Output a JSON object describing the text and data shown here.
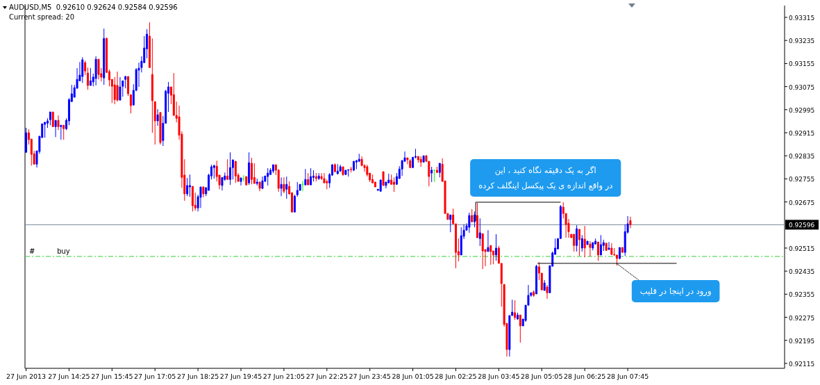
{
  "chart_data": {
    "type": "candlestick",
    "title": "AUDUSD,M5  0.92610 0.92624 0.92584 0.92596",
    "subtitle": "Current spread: 20",
    "colors": [
      "#0000ff",
      "#ff0000",
      "#ff0000",
      "#ff0000",
      "#0000ff",
      "#0000ff",
      "#0000ff",
      "#0000ff",
      "#0000ff",
      "#0000ff",
      "#ff0000",
      "#0000ff",
      "#ff0000",
      "#0000ff",
      "#ff0000",
      "#0000ff",
      "#0000ff",
      "#0000ff",
      "#0000ff",
      "#0000ff",
      "#0000ff",
      "#0000ff",
      "#ff0000",
      "#ff0000",
      "#0000ff",
      "#0000ff",
      "#0000ff",
      "#ff0000",
      "#ff0000",
      "#0000ff",
      "#ff0000",
      "#ff0000",
      "#ff0000",
      "#ff0000",
      "#ff0000",
      "#0000ff",
      "#0000ff",
      "#0000ff",
      "#ff0000",
      "#ff0000",
      "#0000ff",
      "#0000ff",
      "#0000ff",
      "#0000ff",
      "#0000ff",
      "#0000ff",
      "#ff0000",
      "#ff0000",
      "#ff0000",
      "#0000ff",
      "#ff0000",
      "#0000ff",
      "#0000ff",
      "#0000ff",
      "#ff0000",
      "#ff0000",
      "#ff0000",
      "#ff0000",
      "#ff0000",
      "#ff0000",
      "#0000ff",
      "#0000ff",
      "#ff0000",
      "#ff0000",
      "#0000ff",
      "#0000ff",
      "#ff0000",
      "#0000ff",
      "#0000ff",
      "#0000ff",
      "#0000ff",
      "#ff0000",
      "#ff0000",
      "#0000ff",
      "#0000ff",
      "#ff0000",
      "#0000ff",
      "#0000ff",
      "#ff0000",
      "#ff0000",
      "#0000ff",
      "#00ff00",
      "#ff0000",
      "#0000ff",
      "#ff0000",
      "#ff0000",
      "#0000ff",
      "#ff0000",
      "#0000ff",
      "#0000ff",
      "#0000ff",
      "#0000ff",
      "#0000ff",
      "#ff0000",
      "#ff0000",
      "#0000ff",
      "#ff0000",
      "#0000ff",
      "#ff0000",
      "#ff0000",
      "#0000ff",
      "#0000ff",
      "#0000ff",
      "#00ff00",
      "#0000ff",
      "#ff0000",
      "#0000ff",
      "#0000ff",
      "#ff0000",
      "#0000ff",
      "#ff0000",
      "#ff0000",
      "#ff0000",
      "#0000ff",
      "#0000ff",
      "#ff0000",
      "#0000ff",
      "#0000ff",
      "#ff0000",
      "#0000ff",
      "#0000ff",
      "#ff0000",
      "#0000ff",
      "#0000ff",
      "#0000ff",
      "#ff0000",
      "#ff0000",
      "#ff0000",
      "#ff0000",
      "#ff0000",
      "#ff0000",
      "#0000ff",
      "#0000ff",
      "#ff0000",
      "#0000ff",
      "#0000ff",
      "#ff0000",
      "#ff0000",
      "#0000ff",
      "#0000ff",
      "#0000ff",
      "#0000ff",
      "#ff0000",
      "#ff0000",
      "#0000ff",
      "#0000ff",
      "#ff0000",
      "#ff0000",
      "#0000ff",
      "#ff0000",
      "#ff0000",
      "#0000ff",
      "#00ff00",
      "#ff0000",
      "#0000ff",
      "#ff0000",
      "#ff0000",
      "#ff0000",
      "#0000ff",
      "#ff0000",
      "#ff0000",
      "#ff0000",
      "#0000ff",
      "#0000ff",
      "#0000ff",
      "#0000ff",
      "#ff0000",
      "#0000ff",
      "#ff0000",
      "#0000ff",
      "#ff0000",
      "#ff0000",
      "#0000ff",
      "#ff0000",
      "#ff0000",
      "#0000ff",
      "#ff0000",
      "#ff0000",
      "#ff0000",
      "#ff0000",
      "#0000ff",
      "#0000ff",
      "#ff0000",
      "#0000ff",
      "#ff0000",
      "#0000ff",
      "#0000ff",
      "#0000ff",
      "#0000ff",
      "#ff0000",
      "#0000ff",
      "#ff0000",
      "#ff0000",
      "#0000ff",
      "#ff0000",
      "#0000ff",
      "#0000ff",
      "#0000ff",
      "#0000ff",
      "#0000ff",
      "#ff0000",
      "#ff0000",
      "#ff0000",
      "#ff0000",
      "#ff0000",
      "#0000ff",
      "#ff0000",
      "#0000ff",
      "#ff0000",
      "#0000ff",
      "#ff0000",
      "#0000ff",
      "#0000ff",
      "#ff0000",
      "#0000ff",
      "#0000ff",
      "#ff0000",
      "#0000ff",
      "#ff0000",
      "#ff0000",
      "#ff0000",
      "#0000ff",
      "#ff0000",
      "#0000ff",
      "#0000ff",
      "#ff0000"
    ],
    "xlim": [
      "2013-06-27T13:03",
      "2013-06-28T12:37"
    ],
    "ylim": [
      0.92098,
      0.93356
    ],
    "xticks": [
      {
        "value": "2013-06-27T13:05",
        "label": "27 Jun 2013"
      },
      {
        "value": "2013-06-27T14:25",
        "label": "27 Jun 14:25"
      },
      {
        "value": "2013-06-27T15:45",
        "label": "27 Jun 15:45"
      },
      {
        "value": "2013-06-27T17:05",
        "label": "27 Jun 17:05"
      },
      {
        "value": "2013-06-27T18:25",
        "label": "27 Jun 18:25"
      },
      {
        "value": "2013-06-27T19:45",
        "label": "27 Jun 19:45"
      },
      {
        "value": "2013-06-27T21:05",
        "label": "27 Jun 21:05"
      },
      {
        "value": "2013-06-27T22:25",
        "label": "27 Jun 22:25"
      },
      {
        "value": "2013-06-27T23:45",
        "label": "27 Jun 23:45"
      },
      {
        "value": "2013-06-28T01:05",
        "label": "28 Jun 01:05"
      },
      {
        "value": "2013-06-28T02:25",
        "label": "28 Jun 02:25"
      },
      {
        "value": "2013-06-28T03:45",
        "label": "28 Jun 03:45"
      },
      {
        "value": "2013-06-28T05:05",
        "label": "28 Jun 05:05"
      },
      {
        "value": "2013-06-28T06:25",
        "label": "28 Jun 06:25"
      },
      {
        "value": "2013-06-28T07:45",
        "label": "28 Jun 07:45"
      }
    ],
    "yticks": [
      0.93315,
      0.93235,
      0.93155,
      0.93075,
      0.92995,
      0.92915,
      0.92835,
      0.92755,
      0.92675,
      0.92515,
      0.92435,
      0.92355,
      0.92275,
      0.92195,
      0.92115
    ],
    "x": [
      "2013-06-27T13:05",
      "2013-06-27T13:10",
      "2013-06-27T13:15",
      "2013-06-27T13:20",
      "2013-06-27T13:25",
      "2013-06-27T13:30",
      "2013-06-27T13:35",
      "2013-06-27T13:40",
      "2013-06-27T13:45",
      "2013-06-27T13:50",
      "2013-06-27T13:55",
      "2013-06-27T14:00",
      "2013-06-27T14:05",
      "2013-06-27T14:10",
      "2013-06-27T14:15",
      "2013-06-27T14:20",
      "2013-06-27T14:25",
      "2013-06-27T14:30",
      "2013-06-27T14:35",
      "2013-06-27T14:40",
      "2013-06-27T14:45",
      "2013-06-27T14:50",
      "2013-06-27T14:55",
      "2013-06-27T15:00",
      "2013-06-27T15:05",
      "2013-06-27T15:10",
      "2013-06-27T15:15",
      "2013-06-27T15:20",
      "2013-06-27T15:25",
      "2013-06-27T15:30",
      "2013-06-27T15:35",
      "2013-06-27T15:40",
      "2013-06-27T15:45",
      "2013-06-27T15:50",
      "2013-06-27T15:55",
      "2013-06-27T16:00",
      "2013-06-27T16:05",
      "2013-06-27T16:10",
      "2013-06-27T16:15",
      "2013-06-27T16:20",
      "2013-06-27T16:25",
      "2013-06-27T16:30",
      "2013-06-27T16:35",
      "2013-06-27T16:40",
      "2013-06-27T16:45",
      "2013-06-27T16:50",
      "2013-06-27T16:55",
      "2013-06-27T17:00",
      "2013-06-27T17:05",
      "2013-06-27T17:10",
      "2013-06-27T17:15",
      "2013-06-27T17:20",
      "2013-06-27T17:25",
      "2013-06-27T17:30",
      "2013-06-27T17:35",
      "2013-06-27T17:40",
      "2013-06-27T17:45",
      "2013-06-27T17:50",
      "2013-06-27T17:55",
      "2013-06-27T18:00",
      "2013-06-27T18:05",
      "2013-06-27T18:10",
      "2013-06-27T18:15",
      "2013-06-27T18:20",
      "2013-06-27T18:25",
      "2013-06-27T18:30",
      "2013-06-27T18:35",
      "2013-06-27T18:40",
      "2013-06-27T18:45",
      "2013-06-27T18:50",
      "2013-06-27T18:55",
      "2013-06-27T19:00",
      "2013-06-27T19:05",
      "2013-06-27T19:10",
      "2013-06-27T19:15",
      "2013-06-27T19:20",
      "2013-06-27T19:25",
      "2013-06-27T19:30",
      "2013-06-27T19:35",
      "2013-06-27T19:40",
      "2013-06-27T19:45",
      "2013-06-27T19:50",
      "2013-06-27T19:55",
      "2013-06-27T20:00",
      "2013-06-27T20:05",
      "2013-06-27T20:10",
      "2013-06-27T20:15",
      "2013-06-27T20:20",
      "2013-06-27T20:25",
      "2013-06-27T20:30",
      "2013-06-27T20:35",
      "2013-06-27T20:40",
      "2013-06-27T20:45",
      "2013-06-27T20:50",
      "2013-06-27T20:55",
      "2013-06-27T21:00",
      "2013-06-27T21:05",
      "2013-06-27T21:10",
      "2013-06-27T21:15",
      "2013-06-27T21:20",
      "2013-06-27T21:25",
      "2013-06-27T21:30",
      "2013-06-27T21:35",
      "2013-06-27T21:40",
      "2013-06-27T21:45",
      "2013-06-27T21:50",
      "2013-06-27T21:55",
      "2013-06-27T22:00",
      "2013-06-27T22:05",
      "2013-06-27T22:10",
      "2013-06-27T22:15",
      "2013-06-27T22:20",
      "2013-06-27T22:25",
      "2013-06-27T22:30",
      "2013-06-27T22:35",
      "2013-06-27T22:40",
      "2013-06-27T22:45",
      "2013-06-27T22:50",
      "2013-06-27T22:55",
      "2013-06-27T23:00",
      "2013-06-27T23:05",
      "2013-06-27T23:10",
      "2013-06-27T23:15",
      "2013-06-27T23:20",
      "2013-06-27T23:25",
      "2013-06-27T23:30",
      "2013-06-27T23:35",
      "2013-06-27T23:40",
      "2013-06-27T23:45",
      "2013-06-27T23:50",
      "2013-06-27T23:55",
      "2013-06-28T00:00",
      "2013-06-28T00:05",
      "2013-06-28T00:10",
      "2013-06-28T00:15",
      "2013-06-28T00:20",
      "2013-06-28T00:25",
      "2013-06-28T00:30",
      "2013-06-28T00:35",
      "2013-06-28T00:40",
      "2013-06-28T00:45",
      "2013-06-28T00:50",
      "2013-06-28T00:55",
      "2013-06-28T01:00",
      "2013-06-28T01:05",
      "2013-06-28T01:10",
      "2013-06-28T01:15",
      "2013-06-28T01:20",
      "2013-06-28T01:25",
      "2013-06-28T01:30",
      "2013-06-28T01:35",
      "2013-06-28T01:40",
      "2013-06-28T01:45",
      "2013-06-28T01:50",
      "2013-06-28T01:55",
      "2013-06-28T02:00",
      "2013-06-28T02:05",
      "2013-06-28T02:10",
      "2013-06-28T02:15",
      "2013-06-28T02:20",
      "2013-06-28T02:25",
      "2013-06-28T02:30",
      "2013-06-28T02:35",
      "2013-06-28T02:40",
      "2013-06-28T02:45",
      "2013-06-28T02:50",
      "2013-06-28T02:55",
      "2013-06-28T03:00",
      "2013-06-28T03:05",
      "2013-06-28T03:10",
      "2013-06-28T03:15",
      "2013-06-28T03:20",
      "2013-06-28T03:25",
      "2013-06-28T03:30",
      "2013-06-28T03:35",
      "2013-06-28T03:40",
      "2013-06-28T03:45",
      "2013-06-28T03:50",
      "2013-06-28T03:55",
      "2013-06-28T04:00",
      "2013-06-28T04:05",
      "2013-06-28T04:10",
      "2013-06-28T04:15",
      "2013-06-28T04:20",
      "2013-06-28T04:25",
      "2013-06-28T04:30",
      "2013-06-28T04:35",
      "2013-06-28T04:40",
      "2013-06-28T04:45",
      "2013-06-28T04:50",
      "2013-06-28T04:55",
      "2013-06-28T05:00",
      "2013-06-28T05:05",
      "2013-06-28T05:10",
      "2013-06-28T05:15",
      "2013-06-28T05:20",
      "2013-06-28T05:25",
      "2013-06-28T05:30",
      "2013-06-28T05:35",
      "2013-06-28T05:40",
      "2013-06-28T05:45",
      "2013-06-28T05:50",
      "2013-06-28T05:55",
      "2013-06-28T06:00",
      "2013-06-28T06:05",
      "2013-06-28T06:10",
      "2013-06-28T06:15",
      "2013-06-28T06:20",
      "2013-06-28T06:25",
      "2013-06-28T06:30",
      "2013-06-28T06:35",
      "2013-06-28T06:40",
      "2013-06-28T06:45",
      "2013-06-28T06:50",
      "2013-06-28T06:55",
      "2013-06-28T07:00",
      "2013-06-28T07:05",
      "2013-06-28T07:10",
      "2013-06-28T07:15",
      "2013-06-28T07:20",
      "2013-06-28T07:25",
      "2013-06-28T07:30",
      "2013-06-28T07:35",
      "2013-06-28T07:40",
      "2013-06-28T07:45",
      "2013-06-28T07:50"
    ],
    "ohlc": [
      [
        0.92847,
        0.92932,
        0.92847,
        0.92915
      ],
      [
        0.92915,
        0.92927,
        0.92874,
        0.92891
      ],
      [
        0.92893,
        0.92893,
        0.92801,
        0.9284
      ],
      [
        0.92842,
        0.92852,
        0.92806,
        0.92806
      ],
      [
        0.92806,
        0.92852,
        0.92794,
        0.92852
      ],
      [
        0.9285,
        0.92903,
        0.92842,
        0.92903
      ],
      [
        0.92898,
        0.92946,
        0.92898,
        0.92946
      ],
      [
        0.92944,
        0.92953,
        0.92898,
        0.92951
      ],
      [
        0.92948,
        0.92965,
        0.92932,
        0.92956
      ],
      [
        0.9296,
        0.92987,
        0.92941,
        0.92987
      ],
      [
        0.92987,
        0.92987,
        0.92936,
        0.92936
      ],
      [
        0.92936,
        0.92958,
        0.929,
        0.92958
      ],
      [
        0.92958,
        0.92975,
        0.92924,
        0.92936
      ],
      [
        0.92936,
        0.92941,
        0.92891,
        0.92941
      ],
      [
        0.92941,
        0.92941,
        0.92891,
        0.92929
      ],
      [
        0.92929,
        0.92965,
        0.92924,
        0.92958
      ],
      [
        0.92956,
        0.93035,
        0.92941,
        0.9303
      ],
      [
        0.93023,
        0.93081,
        0.93023,
        0.9305
      ],
      [
        0.93038,
        0.93081,
        0.93038,
        0.93071
      ],
      [
        0.93069,
        0.93139,
        0.93069,
        0.931
      ],
      [
        0.93095,
        0.9316,
        0.93095,
        0.93115
      ],
      [
        0.9311,
        0.93177,
        0.93088,
        0.93168
      ],
      [
        0.93158,
        0.93165,
        0.93115,
        0.93129
      ],
      [
        0.93122,
        0.93141,
        0.93064,
        0.93079
      ],
      [
        0.93079,
        0.93139,
        0.93079,
        0.93095
      ],
      [
        0.93091,
        0.9312,
        0.93076,
        0.93108
      ],
      [
        0.93103,
        0.9318,
        0.93079,
        0.9317
      ],
      [
        0.9317,
        0.9317,
        0.931,
        0.93117
      ],
      [
        0.9312,
        0.93139,
        0.93093,
        0.93108
      ],
      [
        0.93105,
        0.93276,
        0.93081,
        0.93242
      ],
      [
        0.93242,
        0.93245,
        0.93124,
        0.93124
      ],
      [
        0.93127,
        0.93134,
        0.93076,
        0.93098
      ],
      [
        0.931,
        0.931,
        0.93018,
        0.93076
      ],
      [
        0.93081,
        0.93108,
        0.93014,
        0.9303
      ],
      [
        0.93079,
        0.93127,
        0.93023,
        0.93028
      ],
      [
        0.93028,
        0.93108,
        0.93028,
        0.93074
      ],
      [
        0.93076,
        0.93095,
        0.9304,
        0.93095
      ],
      [
        0.931,
        0.93112,
        0.93069,
        0.9311
      ],
      [
        0.9311,
        0.9311,
        0.93042,
        0.9305
      ],
      [
        0.93047,
        0.93047,
        0.92982,
        0.93009
      ],
      [
        0.93011,
        0.93083,
        0.93011,
        0.93062
      ],
      [
        0.93062,
        0.93139,
        0.93059,
        0.93134
      ],
      [
        0.93132,
        0.93158,
        0.93074,
        0.93139
      ],
      [
        0.93141,
        0.9318,
        0.93124,
        0.93163
      ],
      [
        0.93158,
        0.9325,
        0.93158,
        0.93209
      ],
      [
        0.93206,
        0.93274,
        0.93173,
        0.93257
      ],
      [
        0.9325,
        0.93298,
        0.93141,
        0.93141
      ],
      [
        0.93117,
        0.93242,
        0.92915,
        0.93026
      ],
      [
        0.93023,
        0.93023,
        0.92874,
        0.92956
      ],
      [
        0.92956,
        0.92997,
        0.92939,
        0.92977
      ],
      [
        0.92985,
        0.92987,
        0.92874,
        0.92881
      ],
      [
        0.92888,
        0.92973,
        0.92869,
        0.92948
      ],
      [
        0.92948,
        0.93064,
        0.92948,
        0.93059
      ],
      [
        0.93052,
        0.93091,
        0.92987,
        0.93074
      ],
      [
        0.93074,
        0.93074,
        0.93014,
        0.93045
      ],
      [
        0.93047,
        0.93122,
        0.92975,
        0.92975
      ],
      [
        0.92975,
        0.93023,
        0.92951,
        0.92965
      ],
      [
        0.9297,
        0.93009,
        0.92891,
        0.92907
      ],
      [
        0.9291,
        0.9292,
        0.92724,
        0.9276
      ],
      [
        0.92768,
        0.92823,
        0.92679,
        0.92703
      ],
      [
        0.92703,
        0.92758,
        0.92695,
        0.92732
      ],
      [
        0.92727,
        0.9277,
        0.92693,
        0.92732
      ],
      [
        0.92729,
        0.92729,
        0.92642,
        0.92662
      ],
      [
        0.92664,
        0.92707,
        0.92645,
        0.92654
      ],
      [
        0.92654,
        0.927,
        0.92642,
        0.92693
      ],
      [
        0.92691,
        0.92727,
        0.92654,
        0.92727
      ],
      [
        0.92727,
        0.92729,
        0.92691,
        0.92703
      ],
      [
        0.92703,
        0.92727,
        0.92695,
        0.92724
      ],
      [
        0.92715,
        0.92773,
        0.92715,
        0.92768
      ],
      [
        0.92765,
        0.92804,
        0.92753,
        0.92797
      ],
      [
        0.92794,
        0.92804,
        0.92756,
        0.92801
      ],
      [
        0.92799,
        0.92818,
        0.92746,
        0.92763
      ],
      [
        0.92768,
        0.92768,
        0.92719,
        0.92734
      ],
      [
        0.92732,
        0.9276,
        0.92715,
        0.9276
      ],
      [
        0.92753,
        0.92777,
        0.92748,
        0.92765
      ],
      [
        0.92765,
        0.92823,
        0.92753,
        0.92753
      ],
      [
        0.92753,
        0.92847,
        0.92734,
        0.92794
      ],
      [
        0.92794,
        0.92821,
        0.92753,
        0.92821
      ],
      [
        0.92816,
        0.92816,
        0.92741,
        0.92765
      ],
      [
        0.92768,
        0.92775,
        0.92746,
        0.92746
      ],
      [
        0.92746,
        0.9276,
        0.92732,
        0.92758
      ],
      [
        0.92756,
        0.92768,
        0.92746,
        0.92756
      ],
      [
        0.92763,
        0.92763,
        0.92732,
        0.92734
      ],
      [
        0.92741,
        0.92847,
        0.92734,
        0.92811
      ],
      [
        0.92809,
        0.92828,
        0.92736,
        0.92753
      ],
      [
        0.9276,
        0.92809,
        0.92739,
        0.92739
      ],
      [
        0.92739,
        0.92756,
        0.92732,
        0.92744
      ],
      [
        0.92744,
        0.92744,
        0.92712,
        0.92722
      ],
      [
        0.92722,
        0.92763,
        0.92719,
        0.92748
      ],
      [
        0.92746,
        0.92765,
        0.92746,
        0.92765
      ],
      [
        0.92763,
        0.92792,
        0.92732,
        0.92775
      ],
      [
        0.9277,
        0.92792,
        0.9277,
        0.92785
      ],
      [
        0.92782,
        0.92804,
        0.92775,
        0.92804
      ],
      [
        0.92804,
        0.92804,
        0.92768,
        0.92785
      ],
      [
        0.92785,
        0.92789,
        0.9271,
        0.92722
      ],
      [
        0.92722,
        0.9276,
        0.92695,
        0.92736
      ],
      [
        0.92736,
        0.9276,
        0.92705,
        0.92712
      ],
      [
        0.92719,
        0.92763,
        0.92686,
        0.92736
      ],
      [
        0.92729,
        0.92746,
        0.927,
        0.92703
      ],
      [
        0.92707,
        0.92707,
        0.92638,
        0.9264
      ],
      [
        0.9264,
        0.927,
        0.92638,
        0.92695
      ],
      [
        0.927,
        0.92744,
        0.92693,
        0.92715
      ],
      [
        0.92715,
        0.92736,
        0.92715,
        0.92736
      ],
      [
        0.92736,
        0.92748,
        0.92712,
        0.92736
      ],
      [
        0.92734,
        0.92789,
        0.92732,
        0.92753
      ],
      [
        0.92753,
        0.92775,
        0.92734,
        0.92734
      ],
      [
        0.92734,
        0.92792,
        0.92734,
        0.92763
      ],
      [
        0.9276,
        0.92785,
        0.92746,
        0.92765
      ],
      [
        0.92763,
        0.92775,
        0.92746,
        0.92756
      ],
      [
        0.92756,
        0.92775,
        0.92751,
        0.92765
      ],
      [
        0.92763,
        0.92775,
        0.92751,
        0.92756
      ],
      [
        0.92756,
        0.92775,
        0.92741,
        0.92741
      ],
      [
        0.92746,
        0.92753,
        0.92719,
        0.92741
      ],
      [
        0.92741,
        0.92775,
        0.92724,
        0.9277
      ],
      [
        0.92768,
        0.92806,
        0.92765,
        0.92804
      ],
      [
        0.92804,
        0.92809,
        0.92777,
        0.9278
      ],
      [
        0.92773,
        0.92806,
        0.9277,
        0.92782
      ],
      [
        0.92782,
        0.92804,
        0.9278,
        0.92797
      ],
      [
        0.92797,
        0.92797,
        0.92765,
        0.9277
      ],
      [
        0.9277,
        0.92785,
        0.9277,
        0.92785
      ],
      [
        0.92785,
        0.92787,
        0.92763,
        0.92787
      ],
      [
        0.92789,
        0.92797,
        0.92777,
        0.92787
      ],
      [
        0.92785,
        0.92816,
        0.92782,
        0.92816
      ],
      [
        0.92813,
        0.92821,
        0.92789,
        0.92818
      ],
      [
        0.92816,
        0.92842,
        0.92813,
        0.92823
      ],
      [
        0.92823,
        0.92833,
        0.92801,
        0.92801
      ],
      [
        0.92801,
        0.92806,
        0.9278,
        0.92794
      ],
      [
        0.92797,
        0.92804,
        0.92763,
        0.9277
      ],
      [
        0.92775,
        0.92775,
        0.92744,
        0.92751
      ],
      [
        0.92753,
        0.9277,
        0.92741,
        0.92741
      ],
      [
        0.92744,
        0.92744,
        0.92727,
        0.92727
      ],
      [
        0.92715,
        0.92719,
        0.92715,
        0.92719
      ],
      [
        0.92712,
        0.92753,
        0.92712,
        0.92751
      ],
      [
        0.9278,
        0.9278,
        0.92732,
        0.92732
      ],
      [
        0.92732,
        0.92744,
        0.92722,
        0.92744
      ],
      [
        0.92741,
        0.92773,
        0.92741,
        0.92751
      ],
      [
        0.92751,
        0.9277,
        0.92736,
        0.92736
      ],
      [
        0.92744,
        0.9276,
        0.9271,
        0.92736
      ],
      [
        0.92736,
        0.92775,
        0.92736,
        0.92763
      ],
      [
        0.92756,
        0.92799,
        0.92756,
        0.92789
      ],
      [
        0.92789,
        0.92821,
        0.92765,
        0.92818
      ],
      [
        0.92816,
        0.9285,
        0.92813,
        0.92828
      ],
      [
        0.92828,
        0.92828,
        0.92806,
        0.92821
      ],
      [
        0.92818,
        0.92823,
        0.92792,
        0.92794
      ],
      [
        0.92794,
        0.9283,
        0.92794,
        0.9283
      ],
      [
        0.9283,
        0.92859,
        0.92826,
        0.92833
      ],
      [
        0.92833,
        0.92833,
        0.92811,
        0.92821
      ],
      [
        0.92823,
        0.92833,
        0.92797,
        0.92813
      ],
      [
        0.92813,
        0.92835,
        0.92813,
        0.92835
      ],
      [
        0.92835,
        0.92838,
        0.92813,
        0.92816
      ],
      [
        0.92816,
        0.92816,
        0.92729,
        0.92763
      ],
      [
        0.92775,
        0.92797,
        0.92744,
        0.92785
      ],
      [
        0.92785,
        0.92785,
        0.92744,
        0.92785
      ],
      [
        0.92785,
        0.92797,
        0.92777,
        0.92777
      ],
      [
        0.92777,
        0.92809,
        0.9276,
        0.92809
      ],
      [
        0.92806,
        0.92826,
        0.92746,
        0.92746
      ],
      [
        0.92748,
        0.92748,
        0.92635,
        0.92635
      ],
      [
        0.92635,
        0.92635,
        0.92614,
        0.92614
      ],
      [
        0.92614,
        0.9263,
        0.9257,
        0.9263
      ],
      [
        0.9263,
        0.92652,
        0.92599,
        0.92599
      ],
      [
        0.92599,
        0.92599,
        0.92445,
        0.925
      ],
      [
        0.92503,
        0.92548,
        0.92469,
        0.92491
      ],
      [
        0.92491,
        0.92587,
        0.92491,
        0.92558
      ],
      [
        0.92556,
        0.92597,
        0.92546,
        0.92577
      ],
      [
        0.92577,
        0.92601,
        0.92577,
        0.92592
      ],
      [
        0.92587,
        0.92638,
        0.92568,
        0.92628
      ],
      [
        0.92628,
        0.9265,
        0.92606,
        0.92606
      ],
      [
        0.92606,
        0.92642,
        0.92587,
        0.9263
      ],
      [
        0.92628,
        0.92671,
        0.92551,
        0.92551
      ],
      [
        0.92548,
        0.92618,
        0.92522,
        0.92568
      ],
      [
        0.92565,
        0.92565,
        0.92442,
        0.92505
      ],
      [
        0.9251,
        0.9251,
        0.92452,
        0.92503
      ],
      [
        0.92503,
        0.92577,
        0.92503,
        0.92517
      ],
      [
        0.92524,
        0.92524,
        0.92457,
        0.92503
      ],
      [
        0.92505,
        0.92505,
        0.92459,
        0.92491
      ],
      [
        0.92491,
        0.92563,
        0.92471,
        0.92515
      ],
      [
        0.92515,
        0.92522,
        0.92462,
        0.92462
      ],
      [
        0.92462,
        0.92462,
        0.92312,
        0.92392
      ],
      [
        0.92389,
        0.92389,
        0.92242,
        0.9225
      ],
      [
        0.92254,
        0.92254,
        0.92139,
        0.92163
      ],
      [
        0.92163,
        0.92281,
        0.92139,
        0.92281
      ],
      [
        0.92281,
        0.92336,
        0.92281,
        0.92293
      ],
      [
        0.92291,
        0.92334,
        0.92266,
        0.92274
      ],
      [
        0.92269,
        0.92291,
        0.92266,
        0.92283
      ],
      [
        0.92283,
        0.92283,
        0.92187,
        0.92245
      ],
      [
        0.92245,
        0.92269,
        0.92245,
        0.92269
      ],
      [
        0.92264,
        0.92317,
        0.92259,
        0.92317
      ],
      [
        0.92317,
        0.92387,
        0.92317,
        0.92351
      ],
      [
        0.92351,
        0.9236,
        0.92346,
        0.9236
      ],
      [
        0.92363,
        0.92368,
        0.92346,
        0.92351
      ],
      [
        0.92356,
        0.92457,
        0.92356,
        0.92452
      ],
      [
        0.9245,
        0.92466,
        0.92404,
        0.92428
      ],
      [
        0.92428,
        0.92428,
        0.9237,
        0.9237
      ],
      [
        0.92368,
        0.92404,
        0.92368,
        0.92394
      ],
      [
        0.9238,
        0.92387,
        0.92339,
        0.9236
      ],
      [
        0.9236,
        0.92454,
        0.9236,
        0.92454
      ],
      [
        0.92452,
        0.92503,
        0.92452,
        0.92498
      ],
      [
        0.92493,
        0.92548,
        0.92493,
        0.92515
      ],
      [
        0.92512,
        0.92548,
        0.92512,
        0.92548
      ],
      [
        0.92548,
        0.92664,
        0.92548,
        0.92659
      ],
      [
        0.92657,
        0.92674,
        0.92618,
        0.92635
      ],
      [
        0.92635,
        0.92635,
        0.92551,
        0.92597
      ],
      [
        0.92601,
        0.92616,
        0.92551,
        0.92572
      ],
      [
        0.92563,
        0.92563,
        0.92551,
        0.92551
      ],
      [
        0.92563,
        0.92563,
        0.92503,
        0.92524
      ],
      [
        0.92524,
        0.92594,
        0.92503,
        0.92582
      ],
      [
        0.9258,
        0.9258,
        0.92488,
        0.92544
      ],
      [
        0.92515,
        0.9256,
        0.92503,
        0.92548
      ],
      [
        0.92546,
        0.92592,
        0.92483,
        0.92515
      ],
      [
        0.92527,
        0.92539,
        0.92527,
        0.92539
      ],
      [
        0.92529,
        0.92539,
        0.92486,
        0.92517
      ],
      [
        0.92515,
        0.92534,
        0.92507,
        0.92534
      ],
      [
        0.92529,
        0.92548,
        0.92529,
        0.92539
      ],
      [
        0.92536,
        0.92536,
        0.92471,
        0.92491
      ],
      [
        0.92491,
        0.9256,
        0.92491,
        0.92527
      ],
      [
        0.92524,
        0.92544,
        0.92505,
        0.92534
      ],
      [
        0.92532,
        0.92532,
        0.92505,
        0.92507
      ],
      [
        0.9251,
        0.92536,
        0.9251,
        0.92515
      ],
      [
        0.92515,
        0.92532,
        0.92491,
        0.92493
      ],
      [
        0.92493,
        0.92515,
        0.92488,
        0.92491
      ],
      [
        0.92491,
        0.92491,
        0.92454,
        0.92479
      ],
      [
        0.92479,
        0.92517,
        0.92476,
        0.92517
      ],
      [
        0.92517,
        0.92517,
        0.925,
        0.925
      ],
      [
        0.925,
        0.92597,
        0.92488,
        0.92572
      ],
      [
        0.9257,
        0.92626,
        0.92565,
        0.92599
      ],
      [
        0.9261,
        0.92624,
        0.92584,
        0.92596
      ]
    ],
    "series": [
      {
        "type": "line",
        "color": "#000000",
        "x": [
          "2013-06-28T03:02",
          "2013-06-28T03:02",
          "2013-06-28T05:40"
        ],
        "values": [
          0.92609,
          0.92674,
          0.92674
        ]
      },
      {
        "type": "line",
        "color": "#000000",
        "x": [
          "2013-06-28T04:57",
          "2013-06-28T09:16"
        ],
        "values": [
          0.92462,
          0.92462
        ]
      }
    ],
    "ref_lines": [
      {
        "axis": "y",
        "value": 0.92596,
        "label": "0.92596",
        "color": "#778899",
        "line_style": "solid"
      },
      {
        "axis": "y",
        "value": 0.92486,
        "label": "#          buy",
        "color": "#32cd32",
        "line_style": "dashed"
      }
    ],
    "annotations": [
      {
        "text": "اگر به یک دقیقه نگاه کنید ، این\nدر واقع اندازه ی یک پیکسل اینگلف کرده",
        "x": "2013-06-28T03:02",
        "y": 0.92674
      },
      {
        "text": "ورود در اینجا در قلیب",
        "x": "2013-06-28T07:24",
        "y": 0.92462
      }
    ]
  }
}
